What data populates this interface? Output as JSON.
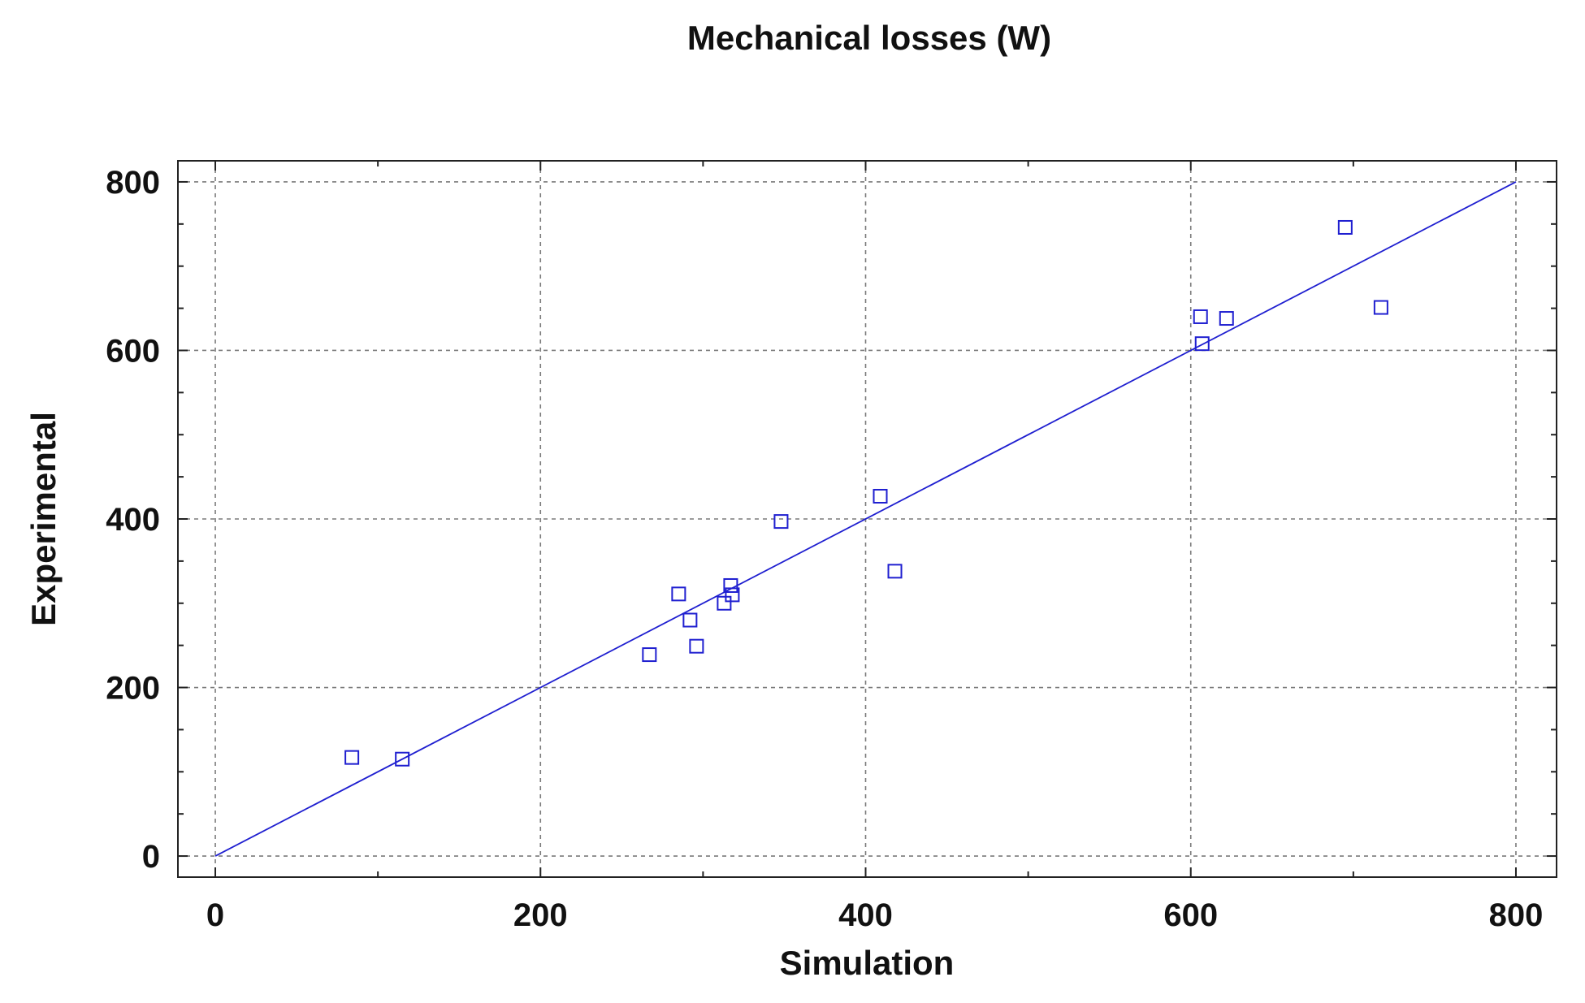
{
  "chart_data": {
    "type": "scatter",
    "title": "Mechanical losses (W)",
    "xlabel": "Simulation",
    "ylabel": "Experimental",
    "xlim": [
      -23,
      825
    ],
    "ylim": [
      -25,
      825
    ],
    "x_ticks": [
      0,
      200,
      400,
      600,
      800
    ],
    "y_ticks": [
      0,
      200,
      400,
      600,
      800
    ],
    "x_tick_labels": [
      "0",
      "200",
      "400",
      "600",
      "800"
    ],
    "y_tick_labels": [
      "0",
      "200",
      "400",
      "600",
      "800"
    ],
    "grid": true,
    "marker": "square-open",
    "color": "#1f1fd0",
    "series": [
      {
        "points": [
          [
            84,
            117
          ],
          [
            115,
            115
          ],
          [
            267,
            239
          ],
          [
            285,
            311
          ],
          [
            292,
            280
          ],
          [
            296,
            249
          ],
          [
            313,
            300
          ],
          [
            317,
            321
          ],
          [
            318,
            310
          ],
          [
            348,
            397
          ],
          [
            409,
            427
          ],
          [
            418,
            338
          ],
          [
            606,
            640
          ],
          [
            607,
            608
          ],
          [
            622,
            638
          ],
          [
            695,
            746
          ],
          [
            717,
            651
          ]
        ]
      }
    ],
    "reference_line": {
      "from": [
        0,
        0
      ],
      "to": [
        800,
        800
      ]
    }
  }
}
